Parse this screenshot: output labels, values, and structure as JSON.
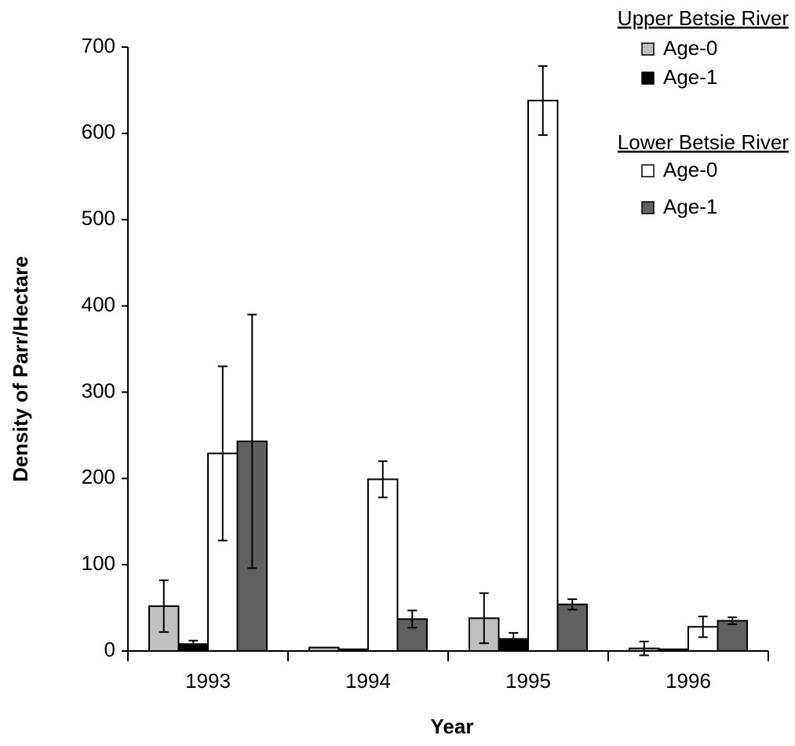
{
  "chart_data": {
    "type": "bar",
    "x_label": "Year",
    "y_label": "Density of Parr/Hectare",
    "categories": [
      "1993",
      "1994",
      "1995",
      "1996"
    ],
    "ylim": [
      0,
      700
    ],
    "yticks": [
      0,
      100,
      200,
      300,
      400,
      500,
      600,
      700
    ],
    "groups": [
      {
        "name": "Upper Betsie River",
        "series": [
          {
            "name": "Age-0",
            "color": "#c0c0c0",
            "values": [
              52,
              4,
              38,
              3
            ],
            "errors": [
              30,
              null,
              29,
              8
            ]
          },
          {
            "name": "Age-1",
            "color": "#000000",
            "values": [
              8,
              2,
              14,
              2
            ],
            "errors": [
              4,
              null,
              7,
              null
            ]
          }
        ]
      },
      {
        "name": "Lower Betsie River",
        "series": [
          {
            "name": "Age-0",
            "color": "#ffffff",
            "values": [
              229,
              199,
              638,
              28
            ],
            "errors": [
              101,
              21,
              40,
              12
            ]
          },
          {
            "name": "Age-1",
            "color": "#606060",
            "values": [
              243,
              37,
              54,
              35
            ],
            "errors": [
              147,
              10,
              6,
              4
            ]
          }
        ]
      }
    ]
  }
}
